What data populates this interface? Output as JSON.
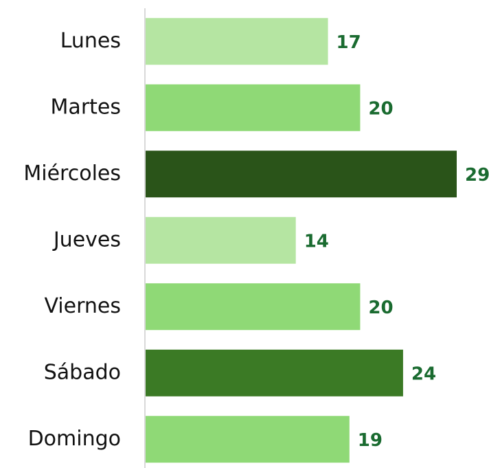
{
  "chart_data": {
    "type": "bar",
    "orientation": "horizontal",
    "categories": [
      "Lunes",
      "Martes",
      "Miércoles",
      "Jueves",
      "Viernes",
      "Sábado",
      "Domingo"
    ],
    "values": [
      17,
      20,
      29,
      14,
      20,
      24,
      19
    ],
    "colors": [
      "#b5e5a2",
      "#8fd976",
      "#2a5419",
      "#b5e5a2",
      "#8fd976",
      "#3b7a25",
      "#8fd976"
    ],
    "value_label_color": "#1a6b30"
  }
}
